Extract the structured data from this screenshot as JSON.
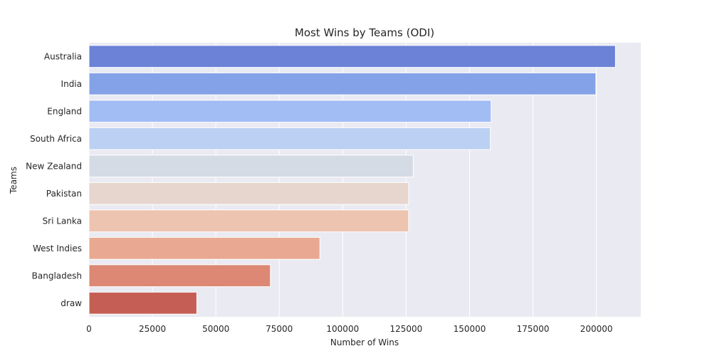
{
  "chart_data": {
    "type": "bar",
    "orientation": "horizontal",
    "title": "Most Wins by Teams (ODI)",
    "xlabel": "Number of Wins",
    "ylabel": "Teams",
    "xlim": [
      0,
      217500
    ],
    "xticks": [
      0,
      25000,
      50000,
      75000,
      100000,
      125000,
      150000,
      175000,
      200000
    ],
    "grid": true,
    "categories": [
      "Australia",
      "India",
      "England",
      "South Africa",
      "New Zealand",
      "Pakistan",
      "Sri Lanka",
      "West Indies",
      "Bangladesh",
      "draw"
    ],
    "values": [
      207500,
      199800,
      158500,
      158200,
      127800,
      126000,
      126000,
      91000,
      71500,
      42500
    ],
    "colors": [
      "#6b82d6",
      "#84a2e7",
      "#a2bcf4",
      "#bcd0f3",
      "#d5dbe5",
      "#e6d6ce",
      "#edc4b0",
      "#e8a891",
      "#dc8874",
      "#c55f55"
    ]
  }
}
